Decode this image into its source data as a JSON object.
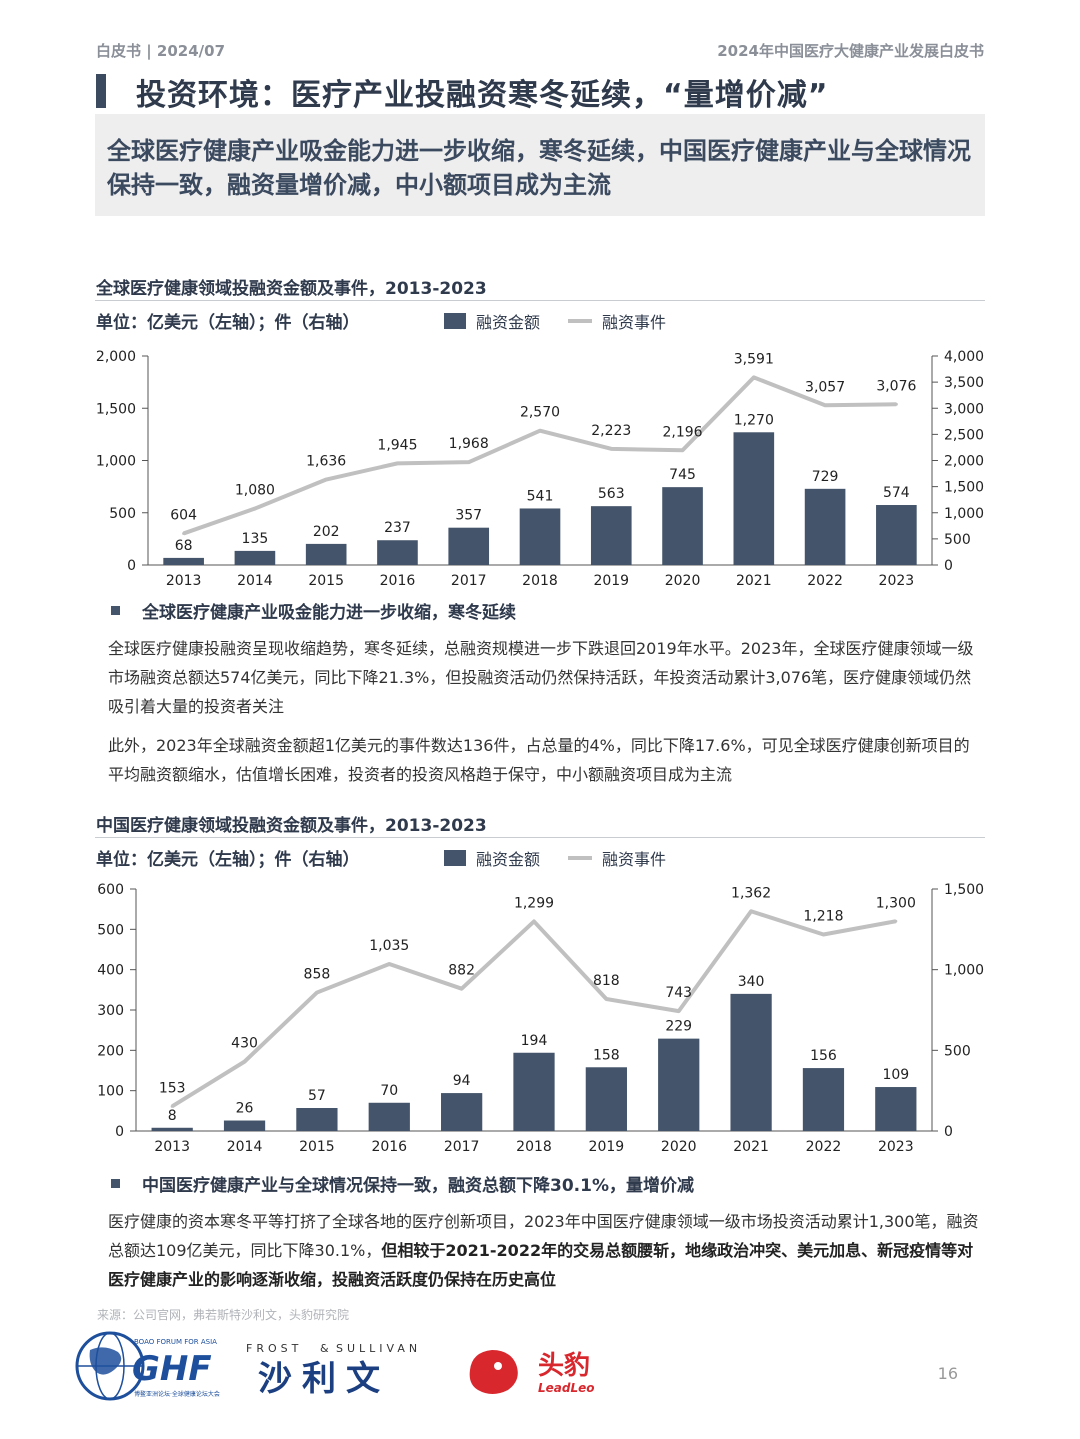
{
  "header": {
    "left": "白皮书 | 2024/07",
    "right": "2024年中国医疗大健康产业发展白皮书"
  },
  "page_title": "投资环境：医疗产业投融资寒冬延续，“量增价减”",
  "summary": "全球医疗健康产业吸金能力进一步收缩，寒冬延续，中国医疗健康产业与全球情况保持一致，融资量增价减，中小额项目成为主流",
  "chart1": {
    "unit": "单位：亿美元（左轴）；件（右轴）",
    "legend_bar": "融资金额",
    "legend_line": "融资事件"
  },
  "chart2": {
    "unit": "单位：亿美元（左轴）；件（右轴）",
    "legend_bar": "融资金额",
    "legend_line": "融资事件"
  },
  "section1": {
    "bullet": "全球医疗健康产业吸金能力进一步收缩，寒冬延续",
    "para1": "全球医疗健康投融资呈现收缩趋势，寒冬延续，总融资规模进一步下跌退回2019年水平。2023年，全球医疗健康领域一级市场融资总额达574亿美元，同比下降21.3%，但投融资活动仍然保持活跃，年投资活动累计3,076笔，医疗健康领域仍然吸引着大量的投资者关注",
    "para2": "此外，2023年全球融资金额超1亿美元的事件数达136件，占总量的4%，同比下降17.6%，可见全球医疗健康创新项目的平均融资额缩水，估值增长困难，投资者的投资风格趋于保守，中小额融资项目成为主流"
  },
  "section2": {
    "bullet": "中国医疗健康产业与全球情况保持一致，融资总额下降30.1%，量增价减",
    "para_normal": "医疗健康的资本寒冬平等打挤了全球各地的医疗创新项目，2023年中国医疗健康领域一级市场投资活动累计1,300笔，融资总额达109亿美元，同比下降30.1%，",
    "para_bold": "但相较于2021-2022年的交易总额腰斩，地缘政治冲突、美元加息、新冠疫情等对医疗健康产业的影响逐渐收缩，投融资活跃度仍保持在历史高位"
  },
  "source": "来源：公司官网，弗若斯特沙利文，头豹研究院",
  "page_number": "16",
  "logos": {
    "ghf_top": "BOAO FORUM FOR ASIA",
    "ghf": "GHF",
    "ghf_sub": "博鳌亚洲论坛·全球健康论坛大会",
    "fs_en_1": "FROST",
    "fs_amp": "&",
    "fs_en_2": "SULLIVAN",
    "fs_cn": "沙利文",
    "leadleo_cn": "头豹",
    "leadleo_en": "LeadLeo"
  },
  "colors": {
    "bar": "#44546a",
    "line": "#c0c0c0",
    "title": "#2f3a4c"
  },
  "chart_data": [
    {
      "type": "bar",
      "title": "全球医疗健康领域投融资金额及事件，2013-2023",
      "categories": [
        "2013",
        "2014",
        "2015",
        "2016",
        "2017",
        "2018",
        "2019",
        "2020",
        "2021",
        "2022",
        "2023"
      ],
      "series": [
        {
          "name": "融资金额",
          "axis": "left",
          "values": [
            68,
            135,
            202,
            237,
            357,
            541,
            563,
            745,
            1270,
            729,
            574
          ]
        },
        {
          "name": "融资事件",
          "axis": "right",
          "type": "line",
          "values": [
            604,
            1080,
            1636,
            1945,
            1968,
            2570,
            2223,
            2196,
            3591,
            3057,
            3076
          ]
        }
      ],
      "ylim_left": [
        0,
        2000
      ],
      "yticks_left": [
        0,
        500,
        1000,
        1500,
        2000
      ],
      "ylim_right": [
        0,
        4000
      ],
      "yticks_right": [
        0,
        500,
        1000,
        1500,
        2000,
        2500,
        3000,
        3500,
        4000
      ]
    },
    {
      "type": "bar",
      "title": "中国医疗健康领域投融资金额及事件，2013-2023",
      "categories": [
        "2013",
        "2014",
        "2015",
        "2016",
        "2017",
        "2018",
        "2019",
        "2020",
        "2021",
        "2022",
        "2023"
      ],
      "series": [
        {
          "name": "融资金额",
          "axis": "left",
          "values": [
            8,
            26,
            57,
            70,
            94,
            194,
            158,
            229,
            340,
            156,
            109
          ]
        },
        {
          "name": "融资事件",
          "axis": "right",
          "type": "line",
          "values": [
            153,
            430,
            858,
            1035,
            882,
            1299,
            818,
            743,
            1362,
            1218,
            1300
          ]
        }
      ],
      "ylim_left": [
        0,
        600
      ],
      "yticks_left": [
        0,
        100,
        200,
        300,
        400,
        500,
        600
      ],
      "ylim_right": [
        0,
        1500
      ],
      "yticks_right": [
        0,
        500,
        1000,
        1500
      ]
    }
  ]
}
